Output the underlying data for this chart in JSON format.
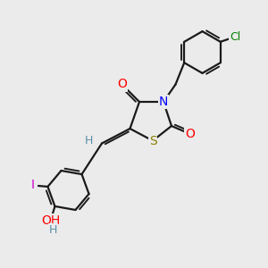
{
  "background_color": "#ebebeb",
  "bond_color": "#1a1a1a",
  "bond_width": 1.6,
  "atoms": {
    "S": {
      "color": "#8B8000",
      "fontsize": 10
    },
    "N": {
      "color": "#0000FF",
      "fontsize": 10
    },
    "O": {
      "color": "#FF0000",
      "fontsize": 10
    },
    "Cl": {
      "color": "#008000",
      "fontsize": 9
    },
    "I": {
      "color": "#CC00CC",
      "fontsize": 10
    },
    "H": {
      "color": "#5B8FA8",
      "fontsize": 9
    }
  },
  "figsize": [
    3.0,
    3.0
  ],
  "dpi": 100,
  "xlim": [
    0,
    10
  ],
  "ylim": [
    0,
    10
  ]
}
